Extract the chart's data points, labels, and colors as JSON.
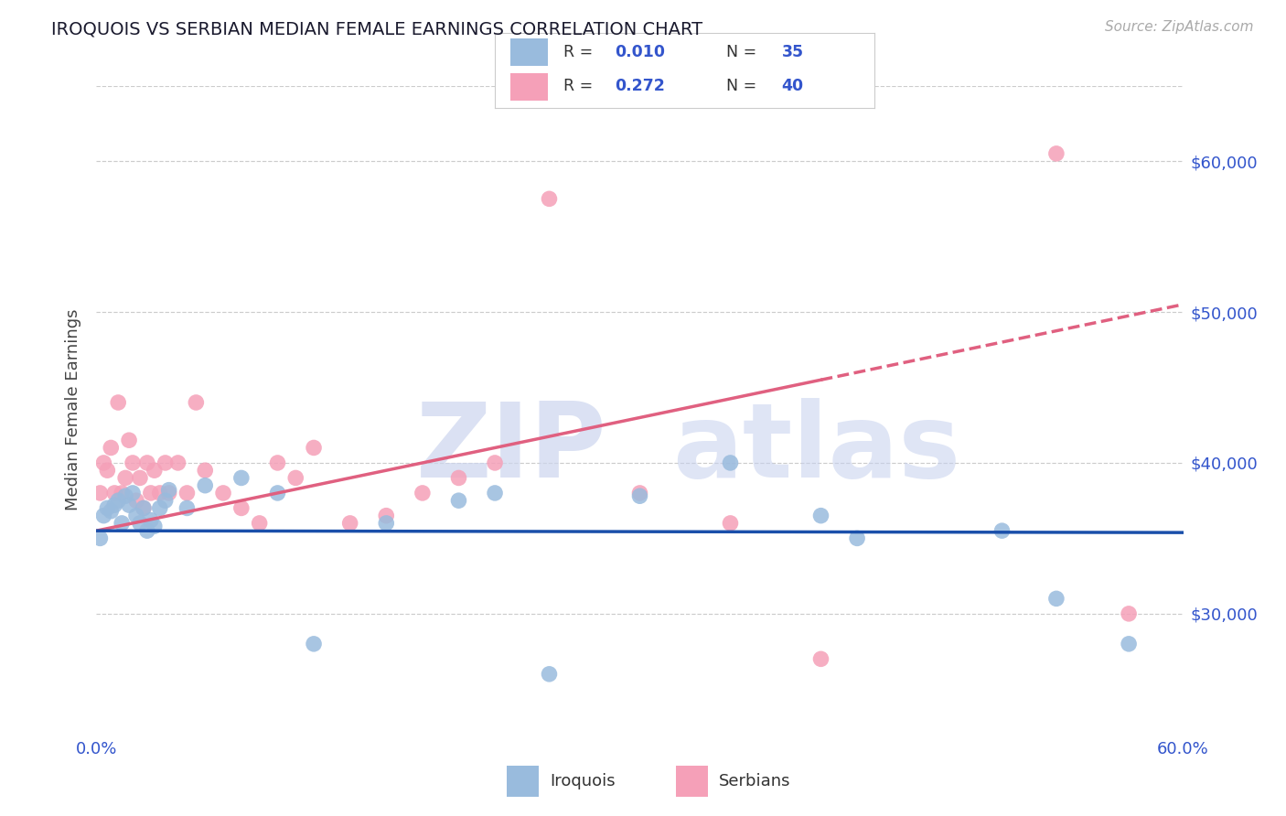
{
  "title": "IROQUOIS VS SERBIAN MEDIAN FEMALE EARNINGS CORRELATION CHART",
  "source": "Source: ZipAtlas.com",
  "ylabel": "Median Female Earnings",
  "xlim": [
    0.0,
    0.6
  ],
  "ylim": [
    22000,
    65000
  ],
  "yticks": [
    30000,
    40000,
    50000,
    60000
  ],
  "ytick_labels": [
    "$30,000",
    "$40,000",
    "$50,000",
    "$60,000"
  ],
  "xticks": [
    0.0,
    0.1,
    0.2,
    0.3,
    0.4,
    0.5,
    0.6
  ],
  "xtick_labels": [
    "0.0%",
    "",
    "",
    "",
    "",
    "",
    "60.0%"
  ],
  "color_iroquois_dot": "#99bbdd",
  "color_serbian_dot": "#f5a0b8",
  "color_iroquois_line": "#1a4faa",
  "color_serbian_line": "#e06080",
  "color_tick_labels": "#3355cc",
  "grid_color": "#cccccc",
  "bg_color": "#ffffff",
  "legend_r1": "0.010",
  "legend_n1": "35",
  "legend_r2": "0.272",
  "legend_n2": "40",
  "iroquois_x": [
    0.002,
    0.004,
    0.006,
    0.008,
    0.01,
    0.012,
    0.014,
    0.016,
    0.018,
    0.02,
    0.022,
    0.024,
    0.026,
    0.028,
    0.03,
    0.032,
    0.035,
    0.038,
    0.04,
    0.05,
    0.06,
    0.08,
    0.1,
    0.12,
    0.16,
    0.2,
    0.22,
    0.25,
    0.3,
    0.35,
    0.4,
    0.42,
    0.5,
    0.53,
    0.57
  ],
  "iroquois_y": [
    35000,
    36500,
    37000,
    36800,
    37200,
    37500,
    36000,
    37800,
    37200,
    38000,
    36500,
    36000,
    37000,
    35500,
    36200,
    35800,
    37000,
    37500,
    38200,
    37000,
    38500,
    39000,
    38000,
    28000,
    36000,
    37500,
    38000,
    26000,
    37800,
    40000,
    36500,
    35000,
    35500,
    31000,
    28000
  ],
  "serbian_x": [
    0.002,
    0.004,
    0.006,
    0.008,
    0.01,
    0.012,
    0.014,
    0.016,
    0.018,
    0.02,
    0.022,
    0.024,
    0.026,
    0.028,
    0.03,
    0.032,
    0.035,
    0.038,
    0.04,
    0.045,
    0.05,
    0.055,
    0.06,
    0.07,
    0.08,
    0.09,
    0.1,
    0.11,
    0.12,
    0.14,
    0.16,
    0.18,
    0.2,
    0.22,
    0.25,
    0.3,
    0.35,
    0.4,
    0.53,
    0.57
  ],
  "serbian_y": [
    38000,
    40000,
    39500,
    41000,
    38000,
    44000,
    38000,
    39000,
    41500,
    40000,
    37500,
    39000,
    37000,
    40000,
    38000,
    39500,
    38000,
    40000,
    38000,
    40000,
    38000,
    44000,
    39500,
    38000,
    37000,
    36000,
    40000,
    39000,
    41000,
    36000,
    36500,
    38000,
    39000,
    40000,
    57500,
    38000,
    36000,
    27000,
    60500,
    30000
  ]
}
